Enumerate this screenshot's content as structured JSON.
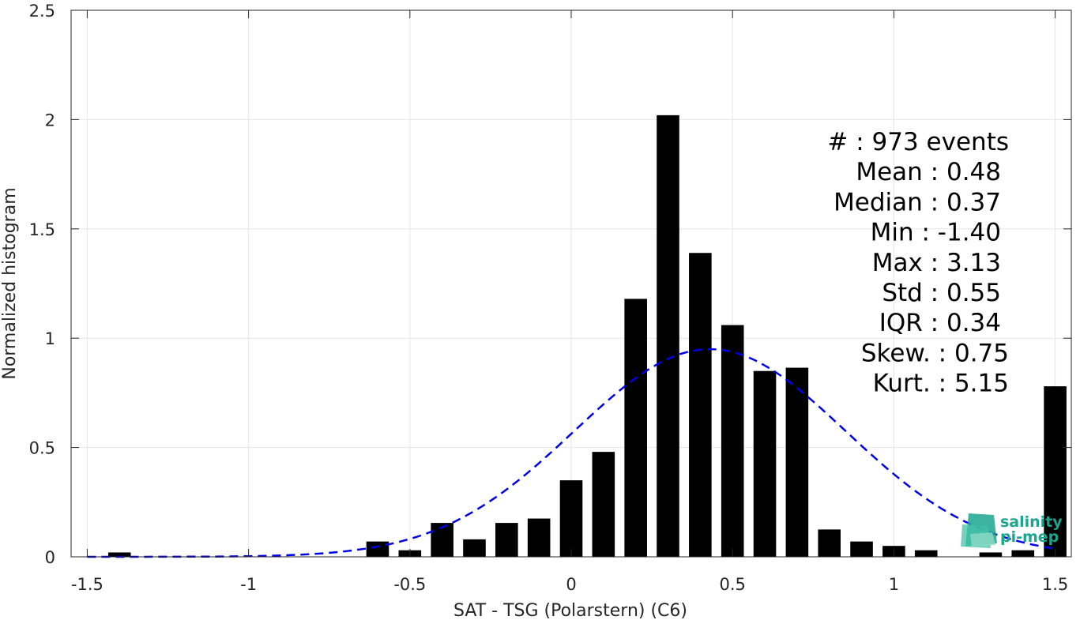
{
  "chart_data": {
    "type": "bar",
    "title": "",
    "xlabel": "SAT - TSG (Polarstern) (C6)",
    "ylabel": "Normalized histogram",
    "xlim": [
      -1.55,
      1.55
    ],
    "ylim": [
      0,
      2.5
    ],
    "grid": true,
    "x_ticks": [
      "-1.5",
      "-1",
      "-0.5",
      "0",
      "0.5",
      "1",
      "1.5"
    ],
    "x_tick_values": [
      -1.5,
      -1,
      -0.5,
      0,
      0.5,
      1,
      1.5
    ],
    "y_ticks": [
      "0",
      "0.5",
      "1",
      "1.5",
      "2",
      "2.5"
    ],
    "y_tick_values": [
      0,
      0.5,
      1,
      1.5,
      2,
      2.5
    ],
    "bar_width": 0.07,
    "bars": {
      "x": [
        -1.4,
        -0.6,
        -0.5,
        -0.4,
        -0.3,
        -0.2,
        -0.1,
        0.0,
        0.1,
        0.2,
        0.3,
        0.4,
        0.5,
        0.6,
        0.7,
        0.8,
        0.9,
        1.0,
        1.1,
        1.3,
        1.4,
        1.5
      ],
      "values": [
        0.02,
        0.07,
        0.03,
        0.155,
        0.08,
        0.155,
        0.175,
        0.35,
        0.48,
        1.18,
        2.02,
        1.39,
        1.06,
        0.85,
        0.865,
        0.125,
        0.07,
        0.05,
        0.03,
        0.02,
        0.03,
        0.78
      ],
      "color": "#000000"
    },
    "fit_curve": {
      "style": "dashed",
      "color": "#0000e6",
      "mean": 0.43,
      "std": 0.42,
      "x_range": [
        -1.5,
        1.5
      ]
    },
    "stats_lines": [
      "#  : 973 events",
      "Mean : 0.48",
      "Median : 0.37",
      "Min : -1.40",
      "Max : 3.13",
      "Std : 0.55",
      "IQR : 0.34",
      "Skew. : 0.75",
      "Kurt. : 5.15"
    ]
  },
  "logo": {
    "line1": "salinity",
    "line2": "pi-mep",
    "color": "#1aa58f"
  }
}
